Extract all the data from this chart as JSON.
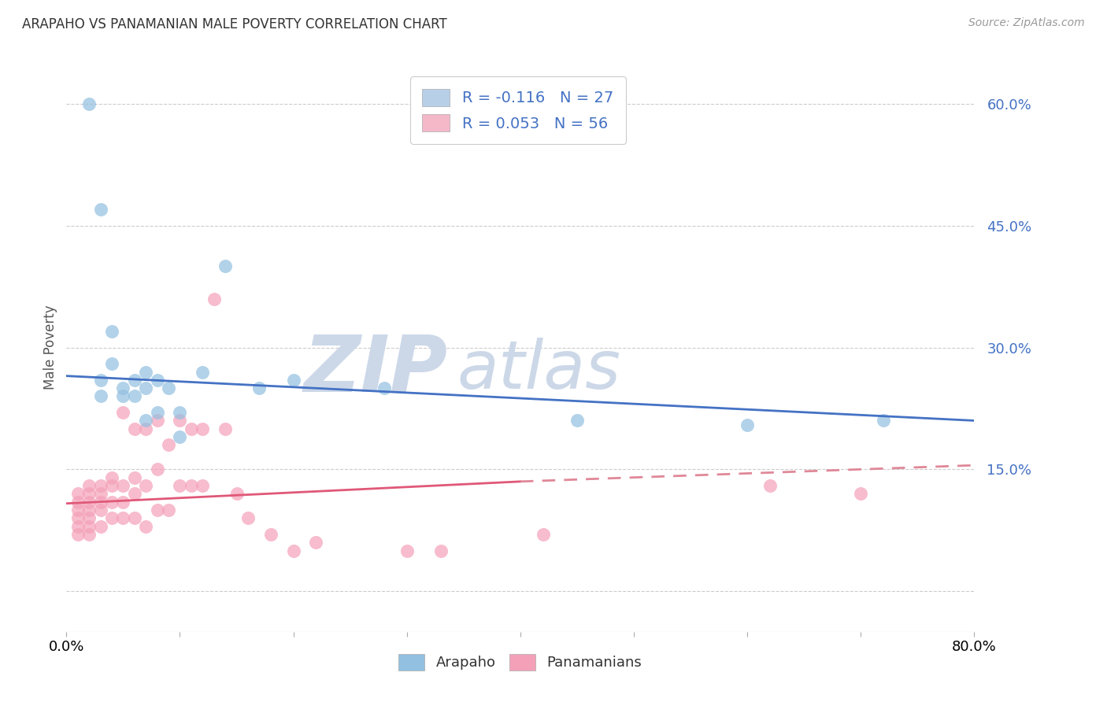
{
  "title": "ARAPAHO VS PANAMANIAN MALE POVERTY CORRELATION CHART",
  "source": "Source: ZipAtlas.com",
  "ylabel": "Male Poverty",
  "xlim": [
    0.0,
    0.8
  ],
  "ylim": [
    -0.05,
    0.65
  ],
  "yticks": [
    0.0,
    0.15,
    0.3,
    0.45,
    0.6
  ],
  "ytick_labels": [
    "",
    "15.0%",
    "30.0%",
    "45.0%",
    "60.0%"
  ],
  "xticks": [
    0.0,
    0.1,
    0.2,
    0.3,
    0.4,
    0.5,
    0.6,
    0.7,
    0.8
  ],
  "arapaho_color": "#92c0e0",
  "panamanian_color": "#f4a0b8",
  "trendline_arapaho_color": "#4472c4",
  "trendline_panamanian_solid_color": "#e05878",
  "trendline_panamanian_dashed_color": "#e08898",
  "watermark_color": "#ccd8e8",
  "background_color": "#ffffff",
  "legend_box_color": "#b8cfe8",
  "legend_box_color2": "#f4b8c8",
  "legend_text_color": "#4472c4",
  "arapaho_x": [
    0.02,
    0.03,
    0.03,
    0.04,
    0.04,
    0.05,
    0.06,
    0.06,
    0.07,
    0.07,
    0.08,
    0.09,
    0.1,
    0.12,
    0.14,
    0.17,
    0.2,
    0.28,
    0.45,
    0.6,
    0.72,
    0.03,
    0.05,
    0.07,
    0.08,
    0.1
  ],
  "arapaho_y": [
    0.6,
    0.47,
    0.26,
    0.32,
    0.28,
    0.25,
    0.26,
    0.24,
    0.27,
    0.25,
    0.26,
    0.25,
    0.22,
    0.27,
    0.4,
    0.25,
    0.26,
    0.25,
    0.21,
    0.205,
    0.21,
    0.24,
    0.24,
    0.21,
    0.22,
    0.19
  ],
  "panamanian_x": [
    0.01,
    0.01,
    0.01,
    0.01,
    0.01,
    0.01,
    0.02,
    0.02,
    0.02,
    0.02,
    0.02,
    0.02,
    0.02,
    0.03,
    0.03,
    0.03,
    0.03,
    0.03,
    0.04,
    0.04,
    0.04,
    0.04,
    0.05,
    0.05,
    0.05,
    0.05,
    0.06,
    0.06,
    0.06,
    0.06,
    0.07,
    0.07,
    0.07,
    0.08,
    0.08,
    0.08,
    0.09,
    0.09,
    0.1,
    0.1,
    0.11,
    0.11,
    0.12,
    0.12,
    0.13,
    0.14,
    0.15,
    0.16,
    0.18,
    0.2,
    0.22,
    0.3,
    0.33,
    0.42,
    0.62,
    0.7
  ],
  "panamanian_y": [
    0.12,
    0.11,
    0.1,
    0.09,
    0.08,
    0.07,
    0.13,
    0.12,
    0.11,
    0.1,
    0.09,
    0.08,
    0.07,
    0.13,
    0.12,
    0.11,
    0.1,
    0.08,
    0.14,
    0.13,
    0.11,
    0.09,
    0.22,
    0.13,
    0.11,
    0.09,
    0.2,
    0.14,
    0.12,
    0.09,
    0.2,
    0.13,
    0.08,
    0.21,
    0.15,
    0.1,
    0.18,
    0.1,
    0.21,
    0.13,
    0.2,
    0.13,
    0.2,
    0.13,
    0.36,
    0.2,
    0.12,
    0.09,
    0.07,
    0.05,
    0.06,
    0.05,
    0.05,
    0.07,
    0.13,
    0.12
  ],
  "trendline_arapaho_x0": 0.0,
  "trendline_arapaho_y0": 0.265,
  "trendline_arapaho_x1": 0.8,
  "trendline_arapaho_y1": 0.21,
  "trendline_pan_solid_x0": 0.0,
  "trendline_pan_solid_y0": 0.108,
  "trendline_pan_solid_x1": 0.4,
  "trendline_pan_solid_y1": 0.135,
  "trendline_pan_dashed_x0": 0.4,
  "trendline_pan_dashed_y0": 0.135,
  "trendline_pan_dashed_x1": 0.8,
  "trendline_pan_dashed_y1": 0.155
}
